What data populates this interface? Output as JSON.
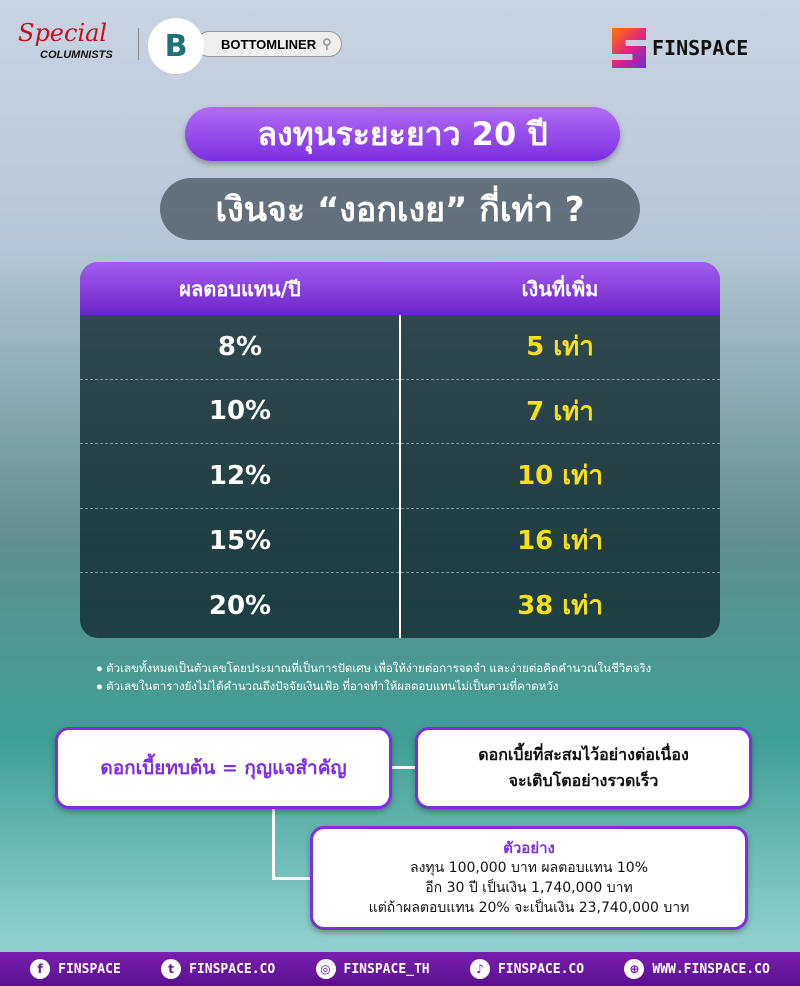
{
  "header": {
    "special": "Special",
    "columnists": "COLUMNISTS",
    "bottomliner_logo": "B",
    "bottomliner": "BOTTOMLINER",
    "finspace": "FINSPACE"
  },
  "title": "ลงทุนระยะยาว 20 ปี",
  "subtitle": "เงินจะ “งอกเงย” กี่เท่า ?",
  "table": {
    "headers": [
      "ผลตอบแทน/ปี",
      "เงินที่เพิ่ม"
    ],
    "rows": [
      {
        "rate": "8%",
        "multiple": "5 เท่า"
      },
      {
        "rate": "10%",
        "multiple": "7 เท่า"
      },
      {
        "rate": "12%",
        "multiple": "10 เท่า"
      },
      {
        "rate": "15%",
        "multiple": "16 เท่า"
      },
      {
        "rate": "20%",
        "multiple": "38 เท่า"
      }
    ]
  },
  "notes": [
    "ตัวเลขทั้งหมดเป็นตัวเลขโดยประมาณที่เป็นการปัดเศษ เพื่อให้ง่ายต่อการจดจำ และง่ายต่อคิดคำนวณในชีวิตจริง",
    "ตัวเลขในตารางยังไม่ได้คำนวณถึงปัจจัยเงินเฟ้อ ที่อาจทำให้ผลตอบแทนไม่เป็นตามที่คาดหวัง"
  ],
  "box_key": "ดอกเบี้ยทบต้น = กุญแจสำคัญ",
  "box_growth": [
    "ดอกเบี้ยที่สะสมไว้อย่างต่อเนื่อง",
    "จะเติบโตอย่างรวดเร็ว"
  ],
  "example": {
    "heading": "ตัวอย่าง",
    "lines": [
      "ลงทุน 100,000 บาท ผลตอบแทน 10%",
      "อีก 30 ปี เป็นเงิน 1,740,000 บาท",
      "แต่ถ้าผลตอบแทน 20% จะเป็นเงิน 23,740,000 บาท"
    ]
  },
  "footer": [
    {
      "icon": "facebook-icon",
      "label": "FINSPACE"
    },
    {
      "icon": "twitter-icon",
      "label": "FINSPACE.CO"
    },
    {
      "icon": "instagram-icon",
      "label": "FINSPACE_TH"
    },
    {
      "icon": "tiktok-icon",
      "label": "FINSPACE.CO"
    },
    {
      "icon": "globe-icon",
      "label": "WWW.FINSPACE.CO"
    }
  ],
  "colors": {
    "purple": "#7d2fe0",
    "yellow": "#f7e01a",
    "footer": "#6a16a0"
  }
}
